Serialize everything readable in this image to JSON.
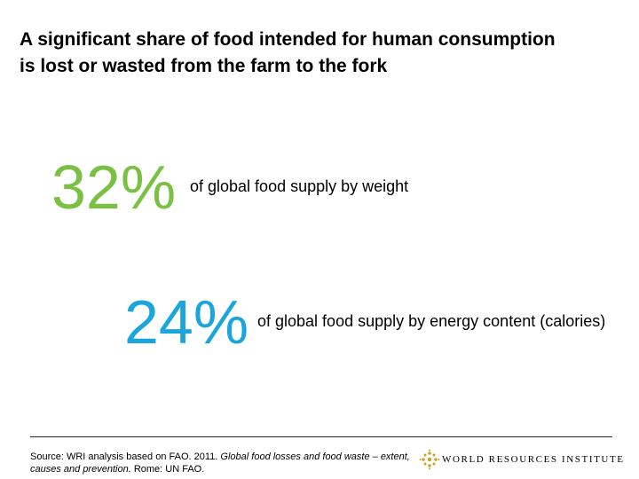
{
  "title": {
    "line1": "A significant share of food intended for human consumption",
    "line2": "is lost or wasted from the farm to the fork"
  },
  "stats": [
    {
      "value": "32%",
      "description": "of global food supply by weight",
      "color": "#7ac143"
    },
    {
      "value": "24%",
      "description": "of global food supply by energy content (calories)",
      "color": "#1aa6dd"
    }
  ],
  "footer": {
    "source_prefix": "Source: WRI analysis based on FAO. 2011.",
    "source_italic": "Global food losses and food waste – extent, causes and prevention.",
    "source_suffix": "Rome: UN FAO.",
    "logo_text": "WORLD RESOURCES INSTITUTE",
    "logo_color": "#c9a227"
  }
}
